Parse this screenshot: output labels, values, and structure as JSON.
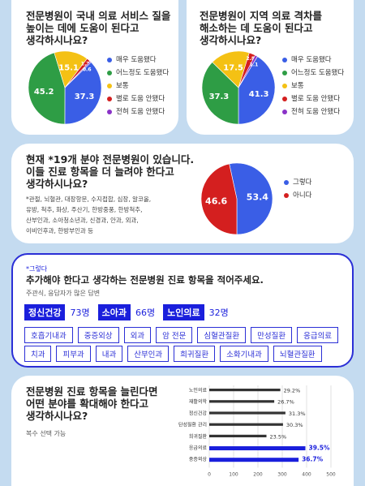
{
  "colors": {
    "blue": "#3a5ee6",
    "green": "#2e9d45",
    "yellow": "#f4c114",
    "red": "#d41f1f",
    "purple": "#8a32c7",
    "bar": "#333333",
    "bar_highlight": "#1a1fdc",
    "accent": "#1a1fdc"
  },
  "legend_items": [
    "매우 도움됐다",
    "어느정도 도움됐다",
    "보통",
    "별로 도움 안됐다",
    "전혀 도움 안됐다"
  ],
  "q1": {
    "title": "전문병원이 국내 의료 서비스 질을\n높이는 데에 도움이 된다고\n생각하시나요?"
  },
  "q2": {
    "title": "전문병원이 지역 의료 격차를\n해소하는 데 도움이 된다고\n생각하시나요?"
  },
  "q3": {
    "title": "현재 *19개 분야 전문병원이 있습니다.\n이들 진료 항목을 더 늘려야 한다고\n생각하시나요?",
    "note": "*관절, 뇌혈관, 대장항문, 수지접합, 심장, 알코올,\n유방, 척추, 화상, 주산기, 한방중풍, 한방척추,\n산부인과, 소아청소년과, 신경과, 안과, 외과,\n이비인후과, 한방부인과 등",
    "legend": [
      "그렇다",
      "아니다"
    ]
  },
  "q4": {
    "tag": "*그렇다",
    "title": "추가해야 한다고 생각하는 전문병원 진료 항목을 적어주세요.",
    "sub": "주관식, 응답자가 많은 답변",
    "top": [
      {
        "label": "정신건강",
        "count": "73명"
      },
      {
        "label": "소아과",
        "count": "66명"
      },
      {
        "label": "노인의료",
        "count": "32명"
      }
    ],
    "chips_row1": [
      "호흡기내과",
      "중증외상",
      "외과",
      "암 전문",
      "심혈관질환",
      "만성질환",
      "응급의료"
    ],
    "chips_row2": [
      "치과",
      "피부과",
      "내과",
      "산부인과",
      "희귀질환",
      "소화기내과",
      "뇌혈관질환"
    ]
  },
  "q5": {
    "title": "전문병원 진료 항목을 늘린다면\n어떤 분야를 확대해야 한다고\n생각하시나요?",
    "sub": "복수 선택 가능"
  },
  "chart_data": [
    {
      "type": "pie",
      "categories": [
        "매우 도움됐다",
        "어느정도 도움됐다",
        "보통",
        "별로 도움 안됐다",
        "전혀 도움 안됐다"
      ],
      "values": [
        37.3,
        45.2,
        15.1,
        1.7,
        0.6
      ],
      "labels": [
        "37.3",
        "45.2",
        "15.1",
        "1.7",
        "0.6"
      ]
    },
    {
      "type": "pie",
      "categories": [
        "매우 도움됐다",
        "어느정도 도움됐다",
        "보통",
        "별로 도움 안됐다",
        "전혀 도움 안됐다"
      ],
      "values": [
        41.3,
        37.3,
        17.5,
        2.8,
        1.1
      ],
      "labels": [
        "41.3",
        "37.3",
        "17.5",
        "2.8",
        "1.1"
      ]
    },
    {
      "type": "pie",
      "categories": [
        "그렇다",
        "아니다"
      ],
      "values": [
        53.4,
        46.6
      ],
      "labels": [
        "53.4",
        "46.6"
      ]
    },
    {
      "type": "bar",
      "orientation": "horizontal",
      "categories": [
        "노인의료",
        "재활의학",
        "정신건강",
        "탄성질환 관리",
        "희귀질환",
        "응급의료",
        "중증외상"
      ],
      "values": [
        29.2,
        26.7,
        31.3,
        30.3,
        23.5,
        39.5,
        36.7
      ],
      "labels": [
        "29.2%",
        "26.7%",
        "31.3%",
        "30.3%",
        "23.5%",
        "39.5%",
        "36.7%"
      ],
      "highlight": [
        false,
        false,
        false,
        false,
        false,
        true,
        true
      ],
      "xticks": [
        "0",
        "100",
        "200",
        "300",
        "400",
        "500"
      ],
      "xlim": [
        0,
        500
      ],
      "scale": 10,
      "grid": true
    }
  ]
}
